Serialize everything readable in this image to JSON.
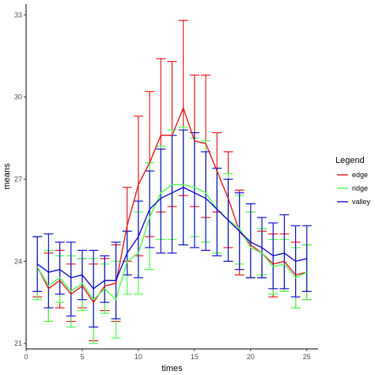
{
  "chart_data": {
    "type": "line",
    "xlabel": "times",
    "ylabel": "means",
    "xlim": [
      0,
      26
    ],
    "ylim": [
      20.8,
      33.4
    ],
    "x_ticks": [
      0,
      5,
      10,
      15,
      20,
      25
    ],
    "y_ticks": [
      21,
      24,
      27,
      30,
      33
    ],
    "grid": false,
    "legend": {
      "title": "Legend",
      "position": "right"
    },
    "x": [
      1,
      2,
      3,
      4,
      5,
      6,
      7,
      8,
      9,
      10,
      11,
      12,
      13,
      14,
      15,
      16,
      17,
      18,
      19,
      20,
      21,
      22,
      23,
      24,
      25
    ],
    "series": [
      {
        "name": "edge",
        "color": "#e41a1c",
        "values": [
          23.8,
          23.0,
          23.3,
          22.8,
          23.1,
          22.5,
          23.1,
          23.2,
          25.3,
          26.8,
          27.6,
          28.6,
          28.6,
          29.6,
          28.4,
          28.3,
          27.3,
          26.3,
          25.1,
          24.6,
          24.3,
          23.9,
          24.0,
          23.5,
          23.6
        ],
        "lower": [
          22.7,
          21.8,
          22.3,
          21.8,
          22.3,
          21.1,
          22.2,
          21.8,
          24.0,
          24.2,
          24.9,
          25.8,
          26.0,
          26.4,
          26.0,
          25.6,
          25.8,
          24.5,
          23.5,
          23.4,
          23.4,
          22.7,
          22.9,
          22.3,
          22.6
        ],
        "upper": [
          24.9,
          24.3,
          24.4,
          23.9,
          24.1,
          23.9,
          24.1,
          24.6,
          26.7,
          29.3,
          30.2,
          31.4,
          31.3,
          32.8,
          30.8,
          30.8,
          28.7,
          28.0,
          26.6,
          25.8,
          25.1,
          25.0,
          25.0,
          24.7,
          24.6
        ]
      },
      {
        "name": "ridge",
        "color": "#4dff4d",
        "values": [
          23.8,
          23.1,
          23.4,
          22.9,
          23.2,
          22.6,
          23.0,
          22.6,
          24.0,
          24.3,
          25.6,
          26.5,
          26.8,
          26.8,
          26.7,
          26.5,
          25.9,
          25.5,
          25.2,
          24.5,
          24.3,
          23.8,
          23.9,
          23.4,
          23.6
        ],
        "lower": [
          22.6,
          21.8,
          22.5,
          21.6,
          22.2,
          21.0,
          22.1,
          21.2,
          22.8,
          22.8,
          23.7,
          24.8,
          24.8,
          24.6,
          24.9,
          24.7,
          24.3,
          24.0,
          23.9,
          23.4,
          23.5,
          22.8,
          22.9,
          22.3,
          22.6
        ],
        "upper": [
          24.9,
          24.4,
          24.2,
          24.2,
          24.1,
          24.1,
          23.9,
          24.0,
          25.1,
          25.8,
          27.6,
          28.2,
          28.8,
          28.9,
          28.5,
          28.4,
          27.4,
          27.2,
          26.4,
          25.8,
          25.2,
          24.8,
          24.8,
          24.5,
          24.6
        ]
      },
      {
        "name": "valley",
        "color": "#1010d0",
        "values": [
          23.9,
          23.6,
          23.7,
          23.4,
          23.5,
          23.0,
          23.3,
          23.3,
          24.3,
          24.9,
          25.9,
          26.3,
          26.5,
          26.7,
          26.5,
          26.3,
          25.9,
          25.5,
          25.1,
          24.7,
          24.5,
          24.2,
          24.3,
          24.0,
          24.1
        ],
        "lower": [
          22.9,
          22.3,
          22.8,
          22.0,
          22.6,
          21.6,
          22.5,
          21.9,
          23.5,
          23.4,
          24.5,
          24.3,
          24.3,
          24.6,
          24.5,
          24.4,
          24.2,
          24.0,
          23.7,
          23.4,
          23.4,
          23.0,
          23.0,
          22.7,
          22.9
        ],
        "upper": [
          24.9,
          25.0,
          24.7,
          24.7,
          24.4,
          24.4,
          24.2,
          24.7,
          25.1,
          26.2,
          27.3,
          28.1,
          28.6,
          28.8,
          28.7,
          28.0,
          27.4,
          27.0,
          26.5,
          26.1,
          25.6,
          25.4,
          25.7,
          25.3,
          25.3
        ]
      }
    ]
  }
}
